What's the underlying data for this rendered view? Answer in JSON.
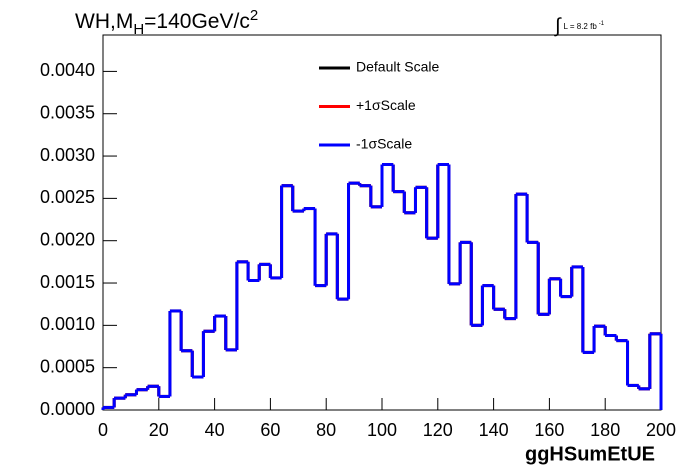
{
  "chart_data": {
    "type": "histogram",
    "title_parts": [
      "WH,M",
      "H",
      "=140GeV/c",
      "2"
    ],
    "annotation_parts": [
      "∫",
      "L = 8.2 fb",
      "-1"
    ],
    "xlabel": "ggHSumEtUE",
    "bins": [
      0,
      4,
      8,
      12,
      16,
      20,
      24,
      28,
      32,
      36,
      40,
      44,
      48,
      52,
      56,
      60,
      64,
      68,
      72,
      76,
      80,
      84,
      88,
      92,
      96,
      100,
      104,
      108,
      112,
      116,
      120,
      124,
      128,
      132,
      136,
      140,
      144,
      148,
      152,
      156,
      160,
      164,
      168,
      172,
      176,
      180,
      184,
      188,
      192,
      196,
      200
    ],
    "series": [
      {
        "name": "Default Scale",
        "color": "#000000",
        "values": [
          3e-05,
          0.00014,
          0.00018,
          0.00024,
          0.00028,
          0.00016,
          0.00117,
          0.0007,
          0.00039,
          0.00093,
          0.00111,
          0.00071,
          0.00175,
          0.00153,
          0.00172,
          0.00156,
          0.00265,
          0.00235,
          0.00238,
          0.00147,
          0.00208,
          0.00131,
          0.00268,
          0.00265,
          0.0024,
          0.0029,
          0.00258,
          0.00233,
          0.00263,
          0.00203,
          0.0029,
          0.00149,
          0.00198,
          0.001,
          0.00147,
          0.00119,
          0.00108,
          0.00255,
          0.00198,
          0.00113,
          0.00155,
          0.00134,
          0.00169,
          0.00068,
          0.00099,
          0.00088,
          0.00082,
          0.00029,
          0.00025,
          0.0009
        ]
      },
      {
        "name": "+1σScale",
        "color": "#ff0000",
        "values": [
          3e-05,
          0.00014,
          0.00018,
          0.00024,
          0.00028,
          0.00016,
          0.00117,
          0.0007,
          0.00039,
          0.00093,
          0.00111,
          0.00071,
          0.00175,
          0.00153,
          0.00172,
          0.00156,
          0.00265,
          0.00235,
          0.00238,
          0.00147,
          0.00208,
          0.00131,
          0.00268,
          0.00265,
          0.0024,
          0.0029,
          0.00258,
          0.00233,
          0.00263,
          0.00203,
          0.0029,
          0.00149,
          0.00198,
          0.001,
          0.00147,
          0.00119,
          0.00108,
          0.00255,
          0.00198,
          0.00113,
          0.00155,
          0.00134,
          0.00169,
          0.00068,
          0.00099,
          0.00088,
          0.00082,
          0.00029,
          0.00025,
          0.0009
        ]
      },
      {
        "name": "-1σScale",
        "color": "#0000ff",
        "values": [
          3e-05,
          0.00014,
          0.00018,
          0.00024,
          0.00028,
          0.00016,
          0.00117,
          0.0007,
          0.00039,
          0.00093,
          0.00111,
          0.00071,
          0.00175,
          0.00153,
          0.00172,
          0.00156,
          0.00265,
          0.00235,
          0.00238,
          0.00147,
          0.00208,
          0.00131,
          0.00268,
          0.00265,
          0.0024,
          0.0029,
          0.00258,
          0.00233,
          0.00263,
          0.00203,
          0.0029,
          0.00149,
          0.00198,
          0.001,
          0.00147,
          0.00119,
          0.00108,
          0.00255,
          0.00198,
          0.00113,
          0.00155,
          0.00134,
          0.00169,
          0.00068,
          0.00099,
          0.00088,
          0.00082,
          0.00029,
          0.00025,
          0.0009
        ]
      }
    ],
    "xlim": [
      0,
      200
    ],
    "xticks": [
      0,
      20,
      40,
      60,
      80,
      100,
      120,
      140,
      160,
      180,
      200
    ],
    "ylim": [
      0,
      0.00443
    ],
    "yticks": [
      {
        "value": 0,
        "label": "0.0000"
      },
      {
        "value": 0.0005,
        "label": "0.0005"
      },
      {
        "value": 0.001,
        "label": "0.0010"
      },
      {
        "value": 0.0015,
        "label": "0.0015"
      },
      {
        "value": 0.002,
        "label": "0.0020"
      },
      {
        "value": 0.0025,
        "label": "0.0025"
      },
      {
        "value": 0.003,
        "label": "0.0030"
      },
      {
        "value": 0.0035,
        "label": "0.0035"
      },
      {
        "value": 0.004,
        "label": "0.0040"
      }
    ],
    "grid": false
  }
}
